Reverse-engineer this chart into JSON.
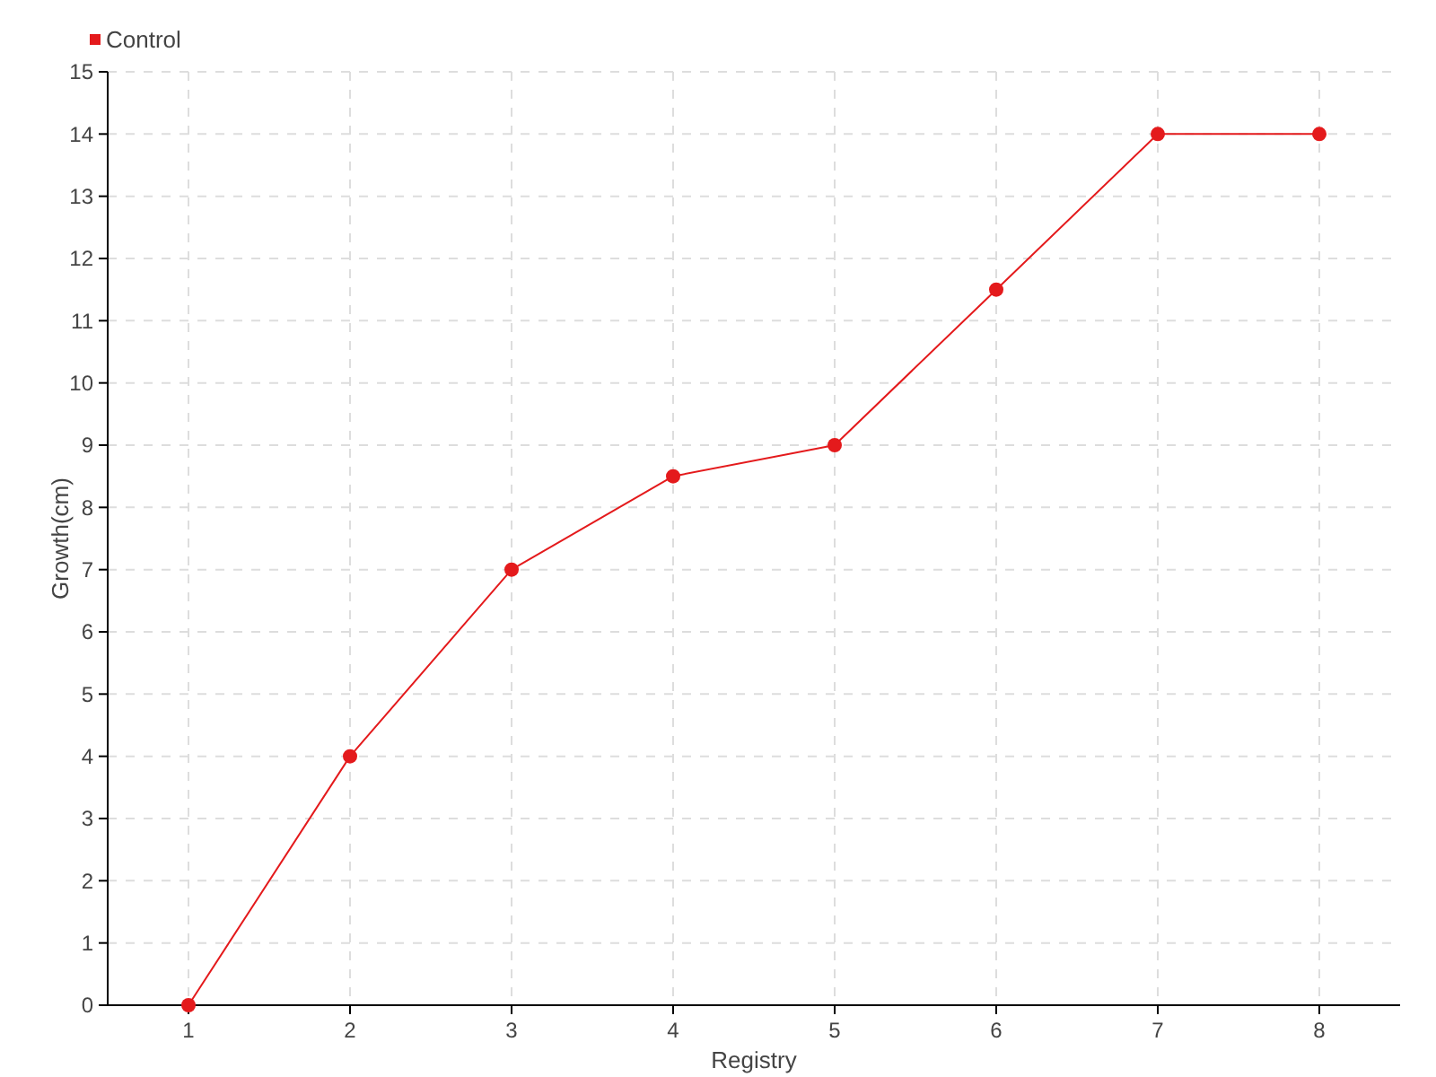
{
  "chart_data": {
    "type": "line",
    "xlabel": "Registry",
    "ylabel": "Growth(cm)",
    "categories": [
      "1",
      "2",
      "3",
      "4",
      "5",
      "6",
      "7",
      "8"
    ],
    "series": [
      {
        "name": "Control",
        "color": "#e41a1c",
        "values": [
          0,
          4,
          7,
          8.5,
          9,
          11.5,
          14,
          14
        ]
      }
    ],
    "ylim": [
      0,
      15
    ],
    "yticks": [
      0,
      1,
      2,
      3,
      4,
      5,
      6,
      7,
      8,
      9,
      10,
      11,
      12,
      13,
      14,
      15
    ],
    "grid": true,
    "legend": "top left",
    "marker": "circle",
    "line_style": "solid"
  }
}
